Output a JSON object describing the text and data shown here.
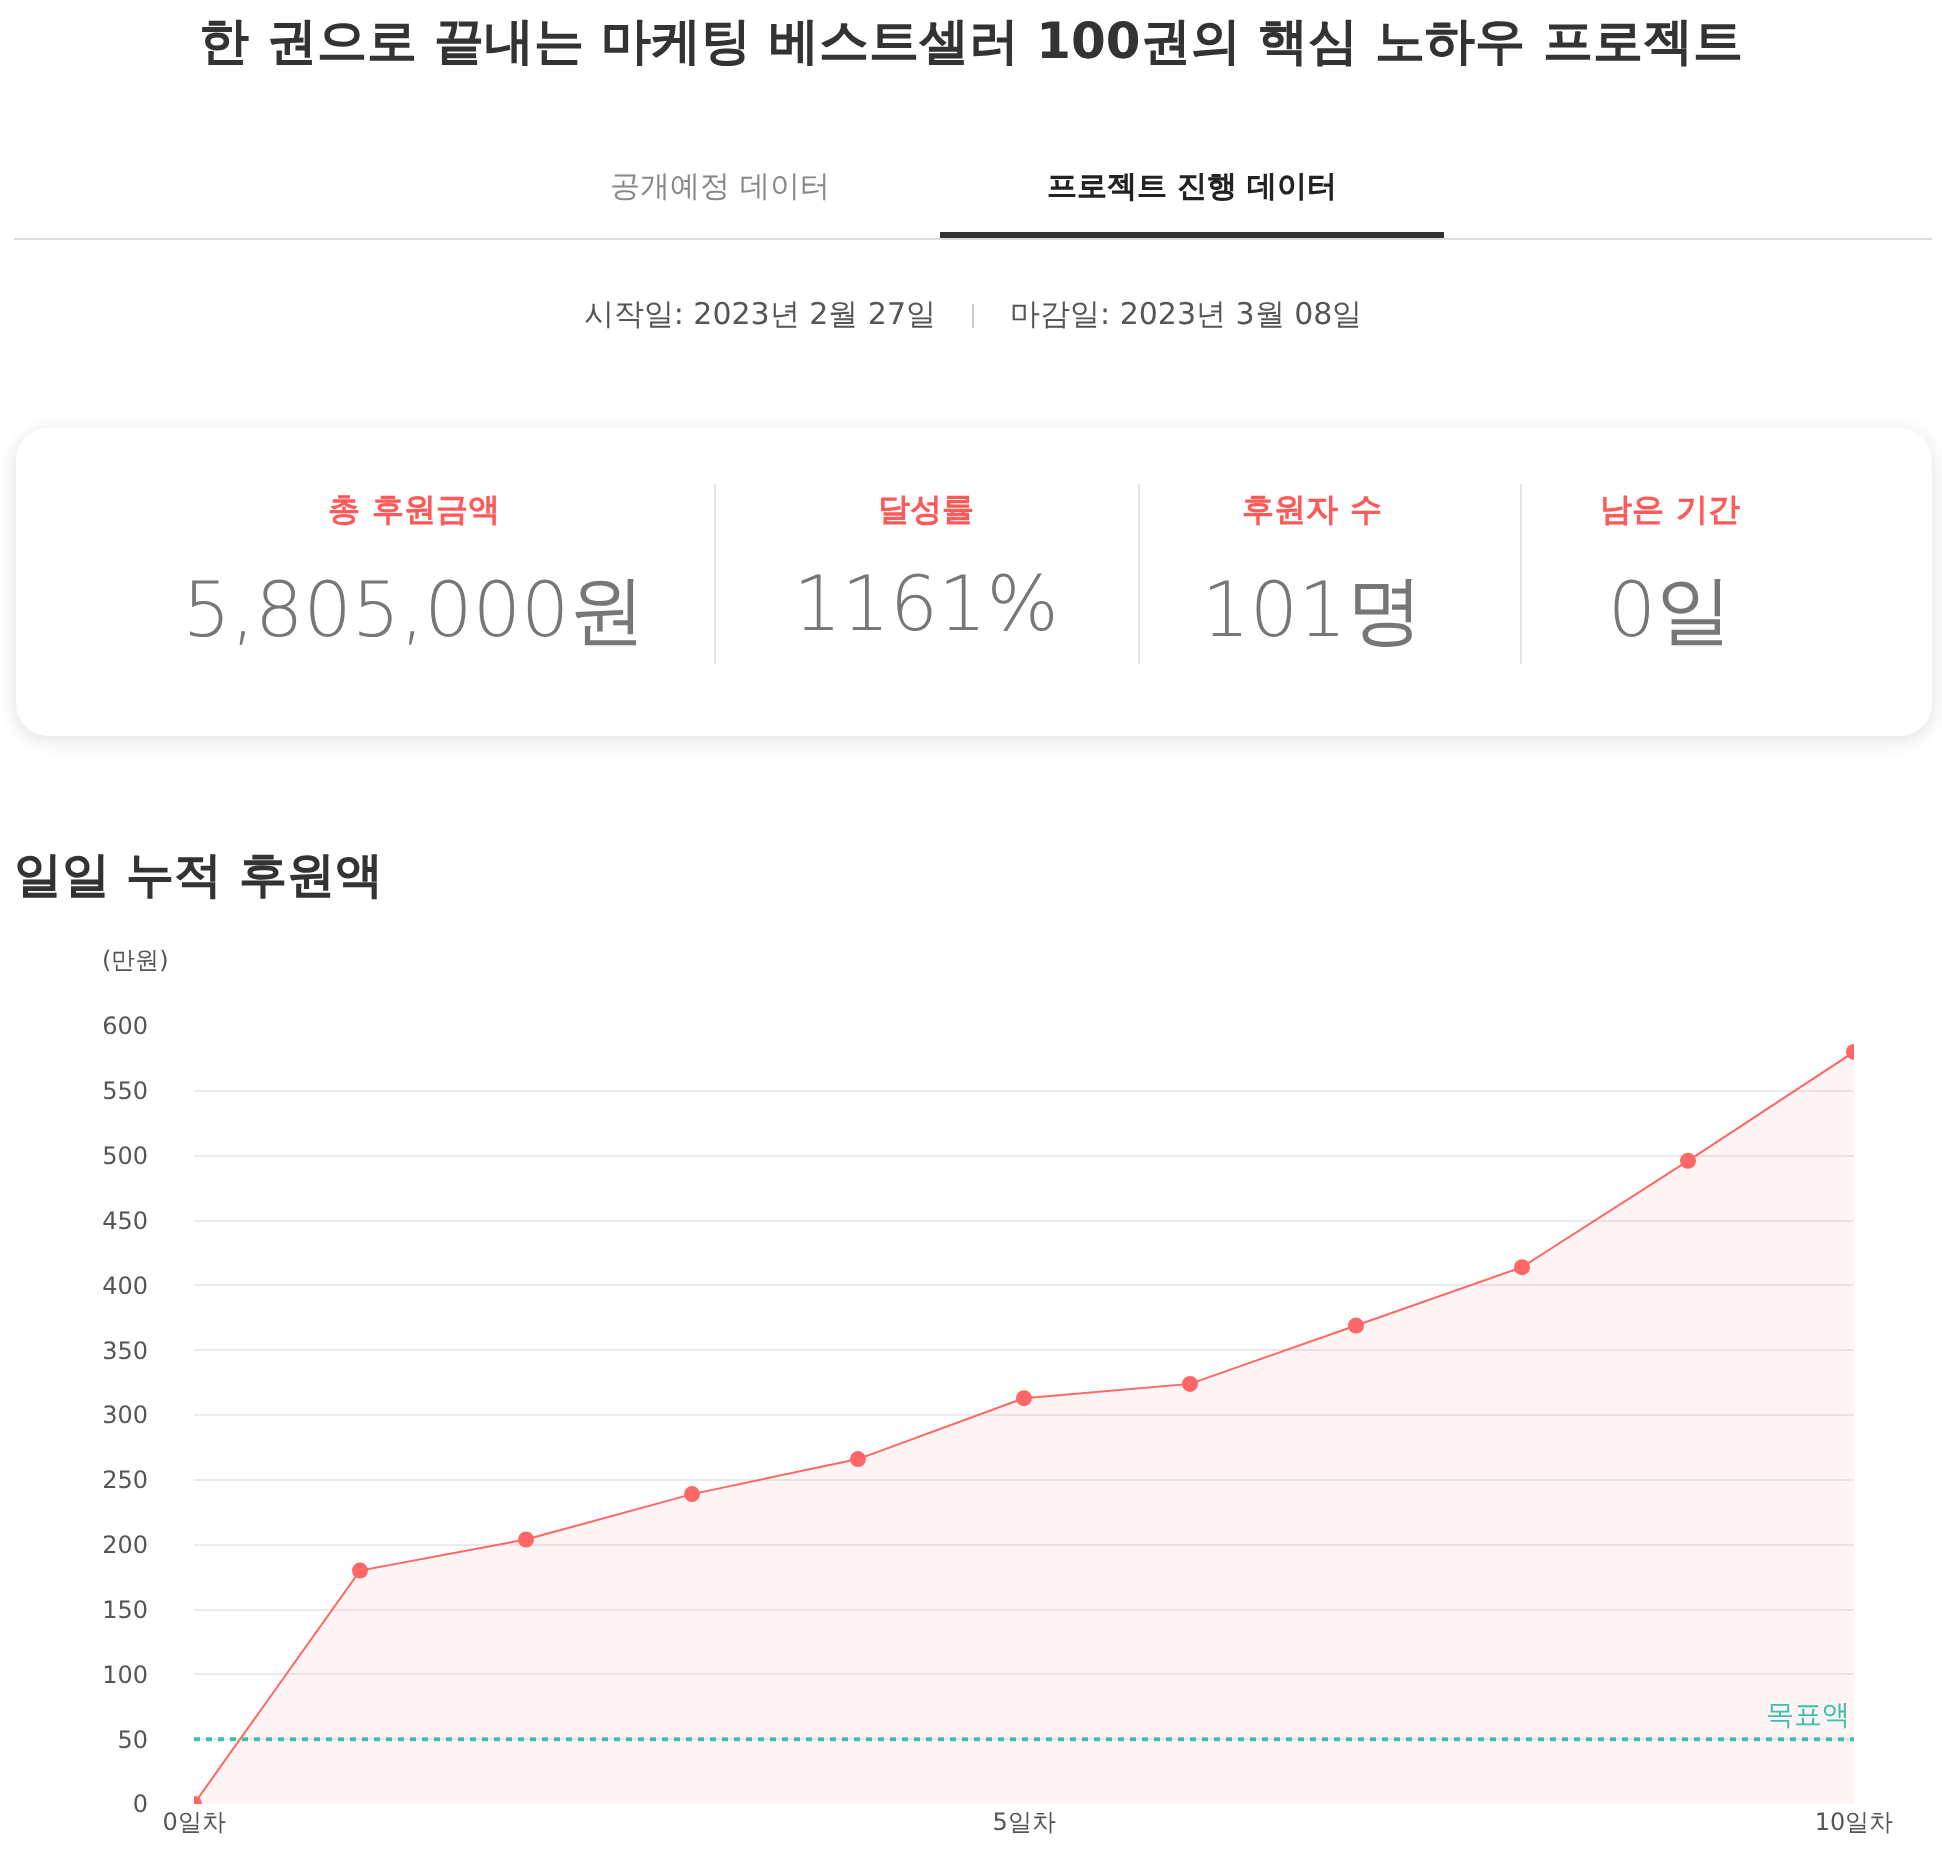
{
  "chart_data": [
    {
      "type": "other",
      "title": "한 권으로 끝내는 마케팅 베스트셀러 100권의 핵심 노하우 프로젝트",
      "annotations": [
        "공개예정 데이터",
        "프로젝트 진행 데이터",
        "시작일: 2023년 2월 27일",
        "마감일: 2023년 3월 08일",
        "총 후원금액",
        "5,805,000원",
        "달성률",
        "1161%",
        "후원자 수",
        "101명",
        "남은 기간",
        "0일"
      ]
    },
    {
      "type": "area",
      "title": "일일 누적 후원액",
      "ylabel": "(만원)",
      "x": [
        0,
        1,
        2,
        3,
        4,
        5,
        6,
        7,
        8,
        9,
        10
      ],
      "values": [
        0,
        180,
        204,
        239,
        266,
        313,
        324,
        369,
        414,
        496,
        580
      ],
      "color": "#ff6666",
      "marker": "circle",
      "grid": "y",
      "xlim": [
        0,
        10
      ],
      "xticks": [
        {
          "value": 0,
          "label": "0일차"
        },
        {
          "value": 5,
          "label": "5일차"
        },
        {
          "value": 10,
          "label": "10일차"
        }
      ],
      "ylim": [
        0,
        600
      ],
      "yticks": [
        0,
        50,
        100,
        150,
        200,
        250,
        300,
        350,
        400,
        450,
        500,
        550,
        600
      ],
      "ref_lines": [
        {
          "axis": "y",
          "value": 50,
          "label": "목표액",
          "color": "#3dbfb0",
          "line_style": "dotted"
        }
      ]
    }
  ]
}
